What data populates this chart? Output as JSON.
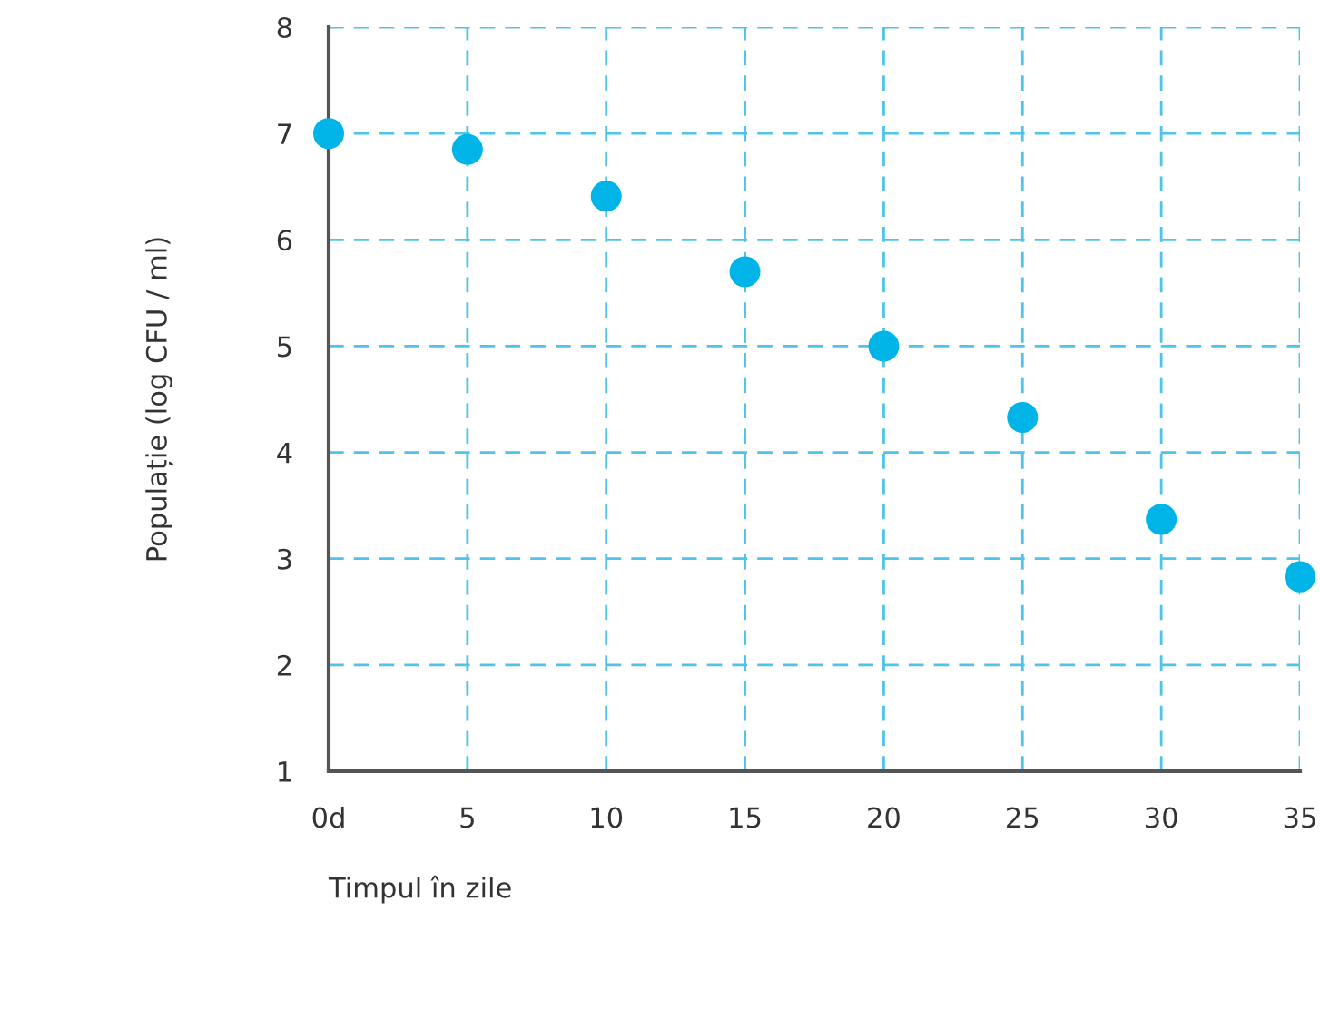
{
  "chart_data": {
    "type": "scatter",
    "xlabel": "Timpul în zile",
    "ylabel": "Populație (log CFU / ml)",
    "x": [
      0,
      5,
      10,
      15,
      20,
      25,
      30,
      35
    ],
    "series": [
      {
        "color": "#00b4e8",
        "values": [
          7.0,
          6.85,
          6.41,
          5.7,
          5.0,
          4.33,
          3.37,
          2.83
        ]
      }
    ],
    "xlim": [
      0,
      35
    ],
    "xticks": [
      {
        "value": 0,
        "label": "0d"
      },
      5,
      10,
      15,
      20,
      25,
      30,
      35
    ],
    "ylim": [
      1,
      8
    ],
    "yticks": [
      1,
      2,
      3,
      4,
      5,
      6,
      7,
      8
    ],
    "grid": true,
    "marker": "circle"
  }
}
